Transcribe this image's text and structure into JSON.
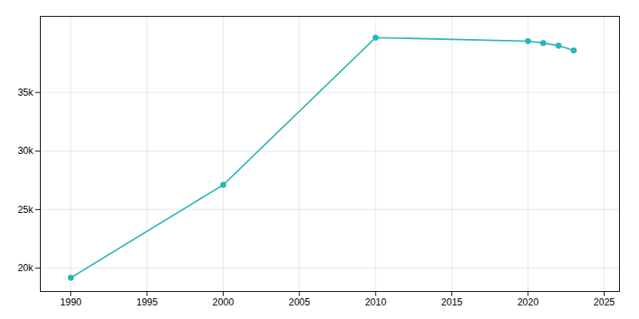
{
  "chart_data": {
    "type": "line",
    "x": [
      1990,
      2000,
      2010,
      2020,
      2021,
      2022,
      2023
    ],
    "values": [
      19179,
      27109,
      39685,
      39383,
      39224,
      38996,
      38596
    ],
    "color": "#2ab5b5",
    "marker": "circle",
    "xlim": [
      1988,
      2026
    ],
    "ylim": [
      18000,
      41500
    ],
    "xticks": [
      1990,
      1995,
      2000,
      2005,
      2010,
      2015,
      2020,
      2025
    ],
    "yticks": [
      {
        "value": 20000,
        "label": "20k"
      },
      {
        "value": 25000,
        "label": "25k"
      },
      {
        "value": 30000,
        "label": "30k"
      },
      {
        "value": 35000,
        "label": "35k"
      }
    ],
    "grid": true
  }
}
